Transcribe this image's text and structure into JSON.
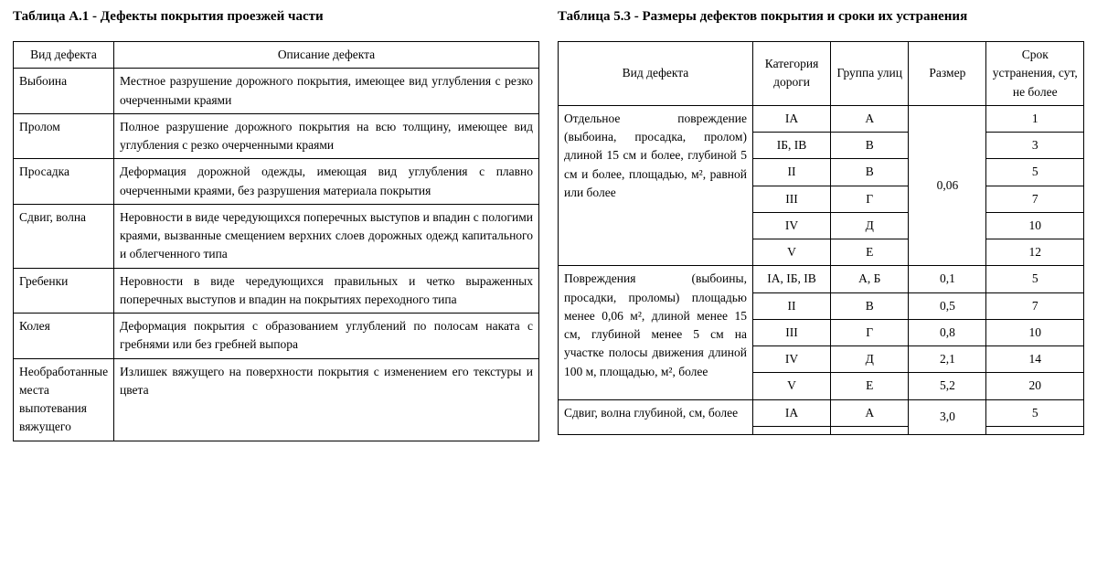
{
  "left": {
    "title": "Таблица А.1 - Дефекты покрытия проезжей части",
    "head": {
      "c1": "Вид дефекта",
      "c2": "Описание дефекта"
    },
    "rows": [
      {
        "name": "Выбоина",
        "desc": "Местное разрушение дорожного покрытия, имеющее вид углубления с резко очерченными краями"
      },
      {
        "name": "Пролом",
        "desc": "Полное разрушение дорожного покрытия на всю толщину, имеющее вид углубления с резко очерченными краями"
      },
      {
        "name": "Просадка",
        "desc": "Деформация дорожной одежды, имеющая вид углубления с плавно очерченными краями, без разрушения материала покрытия"
      },
      {
        "name": "Сдвиг, волна",
        "desc": "Неровности в виде чередующихся поперечных выступов и впадин с пологими краями, вызванные смещением верхних слоев дорожных одежд капитального и облегченного типа"
      },
      {
        "name": "Гребенки",
        "desc": "Неровности в виде чередующихся правильных и четко выраженных поперечных выступов и впадин на покрытиях переходного типа"
      },
      {
        "name": "Колея",
        "desc": "Деформация покрытия с образованием углублений по полосам наката с гребнями или без гребней выпора"
      },
      {
        "name": "Необработанные места выпотевания вяжущего",
        "desc": "Излишек вяжущего на поверхности покрытия с изменением его текстуры и цвета"
      }
    ]
  },
  "right": {
    "title": "Таблица 5.3 - Размеры дефектов покрытия и сроки их устранения",
    "head": {
      "c1": "Вид дефекта",
      "c2": "Категория дороги",
      "c3": "Группа улиц",
      "c4": "Размер",
      "c5": "Срок устранения, сут, не более"
    },
    "block1": {
      "desc": "Отдельное повреждение (выбоина, просадка, пролом) длиной 15 см и более, глубиной 5 см и более, площадью, м², равной или более",
      "size": "0,06",
      "rows": [
        {
          "cat": "IА",
          "grp": "А",
          "time": "1"
        },
        {
          "cat": "IБ, IВ",
          "grp": "В",
          "time": "3"
        },
        {
          "cat": "II",
          "grp": "В",
          "time": "5"
        },
        {
          "cat": "III",
          "grp": "Г",
          "time": "7"
        },
        {
          "cat": "IV",
          "grp": "Д",
          "time": "10"
        },
        {
          "cat": "V",
          "grp": "Е",
          "time": "12"
        }
      ]
    },
    "block2": {
      "desc": "Повреждения (выбоины, просадки, проломы) площадью менее 0,06 м², длиной менее 15 см, глубиной менее 5 см на участке полосы движения длиной 100 м, площадью, м², более",
      "rows": [
        {
          "cat": "IА, IБ, IВ",
          "grp": "А, Б",
          "size": "0,1",
          "time": "5"
        },
        {
          "cat": "II",
          "grp": "В",
          "size": "0,5",
          "time": "7"
        },
        {
          "cat": "III",
          "grp": "Г",
          "size": "0,8",
          "time": "10"
        },
        {
          "cat": "IV",
          "grp": "Д",
          "size": "2,1",
          "time": "14"
        },
        {
          "cat": "V",
          "grp": "Е",
          "size": "5,2",
          "time": "20"
        }
      ]
    },
    "block3": {
      "desc": "Сдвиг, волна глубиной, см, более",
      "size": "3,0",
      "rows": [
        {
          "cat": "IА",
          "grp": "А",
          "time": "5"
        }
      ]
    }
  }
}
